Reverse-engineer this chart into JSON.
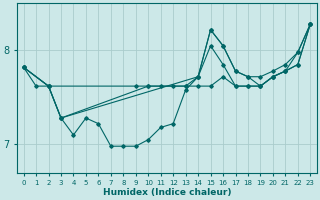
{
  "xlabel": "Humidex (Indice chaleur)",
  "bg_color": "#cce8e8",
  "grid_color": "#aacccc",
  "line_color": "#006666",
  "xlim": [
    -0.5,
    23.5
  ],
  "ylim": [
    6.7,
    8.5
  ],
  "yticks": [
    7,
    8
  ],
  "xticks": [
    0,
    1,
    2,
    3,
    4,
    5,
    6,
    7,
    8,
    9,
    10,
    11,
    12,
    13,
    14,
    15,
    16,
    17,
    18,
    19,
    20,
    21,
    22,
    23
  ],
  "line1_x": [
    0,
    1,
    2,
    3,
    4,
    5,
    6,
    7,
    8,
    9,
    10,
    11,
    12,
    13,
    14,
    15,
    16,
    17,
    18,
    19,
    20,
    21,
    22,
    23
  ],
  "line1_y": [
    7.82,
    7.62,
    7.62,
    7.28,
    7.1,
    7.28,
    7.22,
    6.98,
    6.98,
    6.98,
    7.05,
    7.18,
    7.22,
    7.58,
    7.72,
    8.22,
    8.05,
    7.78,
    7.72,
    7.72,
    7.78,
    7.85,
    7.98,
    8.28
  ],
  "line2_x": [
    0,
    2,
    9,
    10,
    11,
    12,
    13,
    14,
    15,
    16,
    17,
    18,
    19,
    20,
    21,
    22,
    23
  ],
  "line2_y": [
    7.82,
    7.62,
    7.62,
    7.62,
    7.62,
    7.62,
    7.62,
    7.62,
    7.62,
    7.72,
    7.62,
    7.62,
    7.62,
    7.72,
    7.78,
    7.85,
    8.28
  ],
  "line3_x": [
    0,
    2,
    3,
    14,
    15,
    16,
    17,
    18,
    19,
    20,
    21,
    22,
    23
  ],
  "line3_y": [
    7.82,
    7.62,
    7.28,
    7.72,
    8.22,
    8.05,
    7.78,
    7.72,
    7.62,
    7.72,
    7.78,
    7.85,
    8.28
  ],
  "line4_x": [
    0,
    2,
    3,
    10,
    13,
    14,
    15,
    16,
    17,
    18,
    19,
    20,
    21,
    22,
    23
  ],
  "line4_y": [
    7.82,
    7.62,
    7.28,
    7.62,
    7.62,
    7.72,
    8.05,
    7.85,
    7.62,
    7.62,
    7.62,
    7.72,
    7.78,
    7.98,
    8.28
  ]
}
